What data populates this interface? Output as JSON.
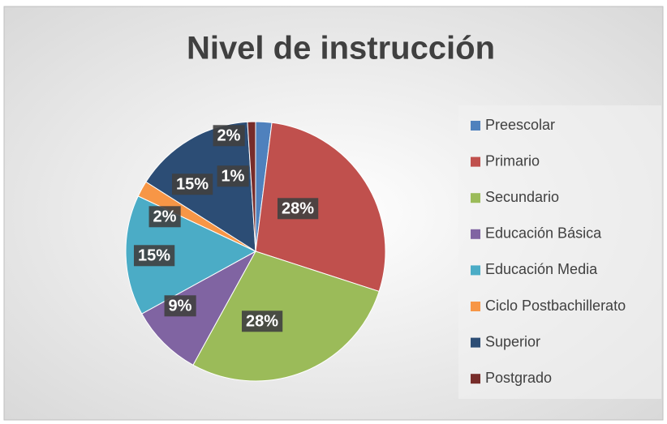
{
  "chart_data": {
    "type": "pie",
    "title": "Nivel de instrucción",
    "categories": [
      "Preescolar",
      "Primario",
      "Secundario",
      "Educación Básica",
      "Educación Media",
      "Ciclo Postbachillerato",
      "Superior",
      "Postgrado"
    ],
    "values": [
      2,
      28,
      28,
      9,
      15,
      2,
      15,
      1
    ],
    "value_labels": [
      "2%",
      "28%",
      "28%",
      "9%",
      "15%",
      "2%",
      "15%",
      "1%"
    ],
    "colors": [
      "#4f81bd",
      "#c0504d",
      "#9bbb59",
      "#8064a2",
      "#4bacc6",
      "#f79646",
      "#2c4d75",
      "#772c2a"
    ],
    "legend": "right"
  }
}
